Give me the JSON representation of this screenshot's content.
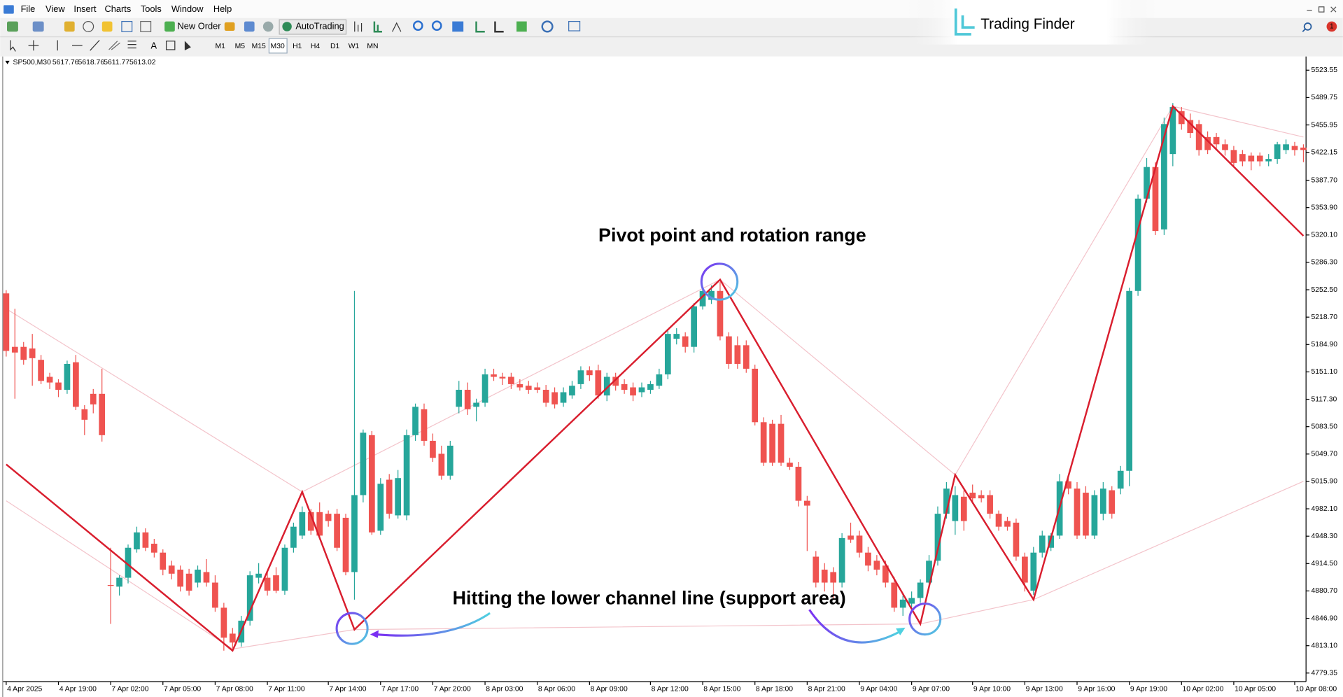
{
  "menu": [
    "File",
    "View",
    "Insert",
    "Charts",
    "Tools",
    "Window",
    "Help"
  ],
  "toolbar": {
    "new_order": "New Order",
    "autotrading": "AutoTrading",
    "timeframes": [
      "M1",
      "M5",
      "M15",
      "M30",
      "H1",
      "H4",
      "D1",
      "W1",
      "MN"
    ]
  },
  "logo": "Trading Finder",
  "notifications": 1,
  "chart_header": {
    "symbol": "SP500,M30",
    "quote": [
      5617.76,
      5618.76,
      5611.77,
      5613.02
    ]
  },
  "annotations": [
    "Pivot point and rotation range",
    "Hitting the lower channel line (support area)"
  ],
  "chart_data": {
    "type": "candlestick",
    "up_color": "#26a69a",
    "down_color": "#ef5350",
    "open": [
      5248,
      5182,
      5182,
      5180,
      5166,
      5145,
      5138,
      5129,
      5163,
      5105,
      5124,
      5124,
      4888,
      4886,
      4897,
      4932,
      4953,
      4939,
      4928,
      4912,
      4907,
      4902,
      4891,
      4904,
      4891,
      4860,
      4828,
      4817,
      4844,
      4897,
      4897,
      4900,
      4881,
      4934,
      4949,
      4978,
      4978,
      4976,
      4976,
      4971,
      4904,
      4999,
      5073,
      4955,
      5018,
      4974,
      4974,
      5073,
      5105,
      5066,
      5050,
      5023,
      5108,
      5129,
      5108,
      5113,
      5148,
      5145,
      5145,
      5136,
      5134,
      5132,
      5129,
      5126,
      5113,
      5122,
      5136,
      5153,
      5153,
      5122,
      5145,
      5136,
      5132,
      5126,
      5129,
      5134,
      5148,
      5192,
      5195,
      5182,
      5232,
      5240,
      5251,
      5195,
      5184,
      5184,
      5155,
      5089,
      5087,
      5087,
      5039,
      5034,
      4992,
      4923,
      4907,
      4904,
      4891,
      4949,
      4949,
      4928,
      4918,
      4912,
      4891,
      4860,
      4865,
      4872,
      4891,
      4918,
      4976,
      4967,
      4997,
      5002,
      4999,
      4999,
      4976,
      4967,
      4965,
      4923,
      4881,
      4928,
      4934,
      4949,
      5016,
      5007,
      5002,
      4949,
      4976,
      5005,
      5007,
      5029,
      5251,
      5365,
      5404,
      5327,
      5420,
      5473,
      5462,
      5457,
      5441,
      5441,
      5432,
      5425,
      5420,
      5418,
      5418,
      5411,
      5414,
      5425,
      5430,
      5428
    ],
    "high": [
      5252,
      5229,
      5188,
      5198,
      5172,
      5150,
      5142,
      5165,
      5172,
      5110,
      5130,
      5155,
      4934,
      4900,
      4938,
      4960,
      4958,
      4945,
      4932,
      4918,
      4912,
      4908,
      4912,
      4920,
      4900,
      4866,
      4835,
      4850,
      4905,
      4915,
      4905,
      4910,
      4938,
      4965,
      4985,
      4982,
      4990,
      4980,
      4982,
      4976,
      5251,
      5080,
      5078,
      5020,
      5025,
      5030,
      5080,
      5112,
      5112,
      5075,
      5060,
      5066,
      5140,
      5138,
      5118,
      5155,
      5155,
      5150,
      5150,
      5142,
      5140,
      5138,
      5135,
      5132,
      5132,
      5140,
      5158,
      5158,
      5160,
      5150,
      5150,
      5142,
      5138,
      5138,
      5140,
      5155,
      5202,
      5205,
      5200,
      5236,
      5255,
      5258,
      5262,
      5200,
      5195,
      5190,
      5160,
      5095,
      5092,
      5098,
      5045,
      5040,
      4998,
      4930,
      4915,
      4910,
      4952,
      4965,
      4955,
      4935,
      4925,
      4918,
      4898,
      4875,
      4880,
      4895,
      4925,
      4985,
      5015,
      5010,
      5005,
      5012,
      5005,
      5005,
      4980,
      4972,
      4970,
      4928,
      4935,
      4955,
      4952,
      5025,
      5020,
      5015,
      5010,
      5005,
      5015,
      5010,
      5035,
      5255,
      5370,
      5415,
      5410,
      5465,
      5483,
      5478,
      5470,
      5462,
      5448,
      5446,
      5438,
      5430,
      5425,
      5422,
      5422,
      5420,
      5435,
      5438,
      5435,
      5432
    ],
    "low": [
      5170,
      5118,
      5160,
      5134,
      5136,
      5130,
      5120,
      5124,
      5104,
      5073,
      5100,
      5065,
      4840,
      4875,
      4890,
      4928,
      4930,
      4922,
      4900,
      4895,
      4880,
      4875,
      4885,
      4886,
      4855,
      4807,
      4810,
      4812,
      4838,
      4890,
      4875,
      4878,
      4876,
      4928,
      4945,
      4950,
      4945,
      4960,
      4930,
      4900,
      4870,
      4990,
      4950,
      4950,
      4970,
      4970,
      4968,
      5066,
      5060,
      5040,
      5018,
      5018,
      5100,
      5098,
      5090,
      5108,
      5140,
      5135,
      5130,
      5128,
      5124,
      5125,
      5108,
      5106,
      5108,
      5118,
      5130,
      5140,
      5118,
      5115,
      5128,
      5124,
      5115,
      5120,
      5124,
      5130,
      5142,
      5185,
      5175,
      5175,
      5228,
      5235,
      5190,
      5155,
      5155,
      5150,
      5085,
      5035,
      5035,
      5035,
      5030,
      4985,
      4930,
      4885,
      4880,
      4870,
      4885,
      4940,
      4922,
      4905,
      4900,
      4885,
      4855,
      4850,
      4860,
      4866,
      4885,
      4912,
      4970,
      4950,
      4955,
      4990,
      4990,
      4970,
      4955,
      4955,
      4918,
      4880,
      4876,
      4922,
      4930,
      4945,
      5000,
      4945,
      4945,
      4945,
      4968,
      4970,
      5000,
      5010,
      5245,
      5360,
      5320,
      5320,
      5405,
      5450,
      5440,
      5418,
      5420,
      5425,
      5418,
      5405,
      5405,
      5400,
      5405,
      5405,
      5408,
      5420,
      5418,
      5410
    ],
    "close": [
      5177,
      5175,
      5166,
      5168,
      5140,
      5138,
      5129,
      5161,
      5108,
      5092,
      5111,
      5073,
      4887,
      4897,
      4934,
      4953,
      4934,
      4928,
      4907,
      4902,
      4886,
      4881,
      4907,
      4891,
      4860,
      4823,
      4817,
      4844,
      4900,
      4902,
      4881,
      4881,
      4934,
      4960,
      4978,
      4955,
      4949,
      4967,
      4934,
      4904,
      4999,
      5076,
      4953,
      5013,
      4976,
      5020,
      5073,
      5108,
      5066,
      5045,
      5023,
      5060,
      5129,
      5105,
      5113,
      5148,
      5145,
      5143,
      5136,
      5132,
      5129,
      5129,
      5113,
      5111,
      5126,
      5134,
      5153,
      5147,
      5122,
      5145,
      5134,
      5129,
      5122,
      5132,
      5136,
      5148,
      5198,
      5198,
      5182,
      5232,
      5251,
      5251,
      5195,
      5161,
      5161,
      5155,
      5089,
      5039,
      5039,
      5039,
      5034,
      4992,
      4986,
      4891,
      4891,
      4891,
      4946,
      4944,
      4928,
      4912,
      4907,
      4891,
      4860,
      4870,
      4872,
      4891,
      4918,
      4976,
      5007,
      4999,
      4967,
      4995,
      4995,
      4976,
      4960,
      4960,
      4923,
      4891,
      4928,
      4949,
      4949,
      5016,
      5007,
      4949,
      4949,
      4999,
      5007,
      4976,
      5029,
      5251,
      5365,
      5404,
      5325,
      5457,
      5478,
      5457,
      5446,
      5425,
      5425,
      5432,
      5425,
      5409,
      5411,
      5411,
      5411,
      5414,
      5432,
      5432,
      5425,
      5425
    ],
    "zigzag": {
      "color": "#d91e2e",
      "x": [
        0,
        26,
        34,
        40,
        82,
        105,
        109,
        118,
        134,
        149
      ],
      "values": [
        5037,
        4807,
        5003,
        4833,
        5265,
        4840,
        5024,
        4870,
        5479,
        5319
      ]
    },
    "channel_upper": {
      "color": "#f3c4cb",
      "x": [
        0,
        34,
        82,
        109,
        134,
        149
      ],
      "values": [
        5229,
        5003,
        5265,
        5024,
        5479,
        5441
      ]
    },
    "channel_lower": {
      "color": "#f3c4cb",
      "x": [
        0,
        26,
        40,
        105,
        118,
        149
      ],
      "values": [
        4992,
        4809,
        4833,
        4840,
        4870,
        5016
      ]
    },
    "xlim": [
      -0.4,
      149.3
    ],
    "xticks": [
      {
        "value": 0,
        "label": "4 Apr 2025"
      },
      {
        "value": 6,
        "label": "4 Apr 19:00"
      },
      {
        "value": 12,
        "label": "7 Apr 02:00"
      },
      {
        "value": 18,
        "label": "7 Apr 05:00"
      },
      {
        "value": 24,
        "label": "7 Apr 08:00"
      },
      {
        "value": 30,
        "label": "7 Apr 11:00"
      },
      {
        "value": 37,
        "label": "7 Apr 14:00"
      },
      {
        "value": 43,
        "label": "7 Apr 17:00"
      },
      {
        "value": 49,
        "label": "7 Apr 20:00"
      },
      {
        "value": 55,
        "label": "8 Apr 03:00"
      },
      {
        "value": 61,
        "label": "8 Apr 06:00"
      },
      {
        "value": 67,
        "label": "8 Apr 09:00"
      },
      {
        "value": 74,
        "label": "8 Apr 12:00"
      },
      {
        "value": 80,
        "label": "8 Apr 15:00"
      },
      {
        "value": 86,
        "label": "8 Apr 18:00"
      },
      {
        "value": 92,
        "label": "8 Apr 21:00"
      },
      {
        "value": 98,
        "label": "9 Apr 04:00"
      },
      {
        "value": 104,
        "label": "9 Apr 07:00"
      },
      {
        "value": 111,
        "label": "9 Apr 10:00"
      },
      {
        "value": 117,
        "label": "9 Apr 13:00"
      },
      {
        "value": 123,
        "label": "9 Apr 16:00"
      },
      {
        "value": 129,
        "label": "9 Apr 19:00"
      },
      {
        "value": 135,
        "label": "10 Apr 02:00"
      },
      {
        "value": 141,
        "label": "10 Apr 05:00"
      },
      {
        "value": 148,
        "label": "10 Apr 08:00"
      }
    ],
    "ylim": [
      4768.8,
      5538.3
    ],
    "yticks": [
      5523.55,
      5489.75,
      5455.95,
      5422.15,
      {
        "value": 5387.7,
        "label": "5387.70"
      },
      {
        "value": 5353.9,
        "label": "5353.90"
      },
      {
        "value": 5320.1,
        "label": "5320.10"
      },
      {
        "value": 5286.3,
        "label": "5286.30"
      },
      {
        "value": 5252.5,
        "label": "5252.50"
      },
      {
        "value": 5218.7,
        "label": "5218.70"
      },
      {
        "value": 5184.9,
        "label": "5184.90"
      },
      {
        "value": 5151.1,
        "label": "5151.10"
      },
      {
        "value": 5117.3,
        "label": "5117.30"
      },
      {
        "value": 5083.5,
        "label": "5083.50"
      },
      {
        "value": 5049.7,
        "label": "5049.70"
      },
      {
        "value": 5015.9,
        "label": "5015.90"
      },
      {
        "value": 4982.1,
        "label": "4982.10"
      },
      {
        "value": 4948.3,
        "label": "4948.30"
      },
      {
        "value": 4914.5,
        "label": "4914.50"
      },
      {
        "value": 4880.7,
        "label": "4880.70"
      },
      {
        "value": 4846.9,
        "label": "4846.90"
      },
      {
        "value": 4813.1,
        "label": "4813.10"
      },
      4779.35
    ],
    "grid": false
  }
}
